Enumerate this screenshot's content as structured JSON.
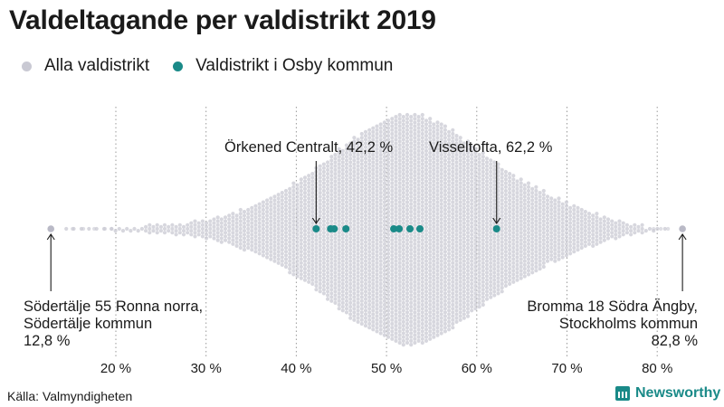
{
  "title": "Valdeltagande per valdistrikt 2019",
  "legend": [
    {
      "label": "Alla valdistrikt",
      "color": "#c9c9d3"
    },
    {
      "label": "Valdistrikt i Osby kommun",
      "color": "#1a8a88"
    }
  ],
  "annotations": {
    "left": [
      "Södertälje 55 Ronna norra,",
      "Södertälje kommun",
      "12,8 %"
    ],
    "right": [
      "Bromma 18 Södra Ängby,",
      "Stockholms kommun",
      "82,8 %"
    ],
    "orkened": "Örkened Centralt, 42,2 %",
    "visseltofta": "Visseltofta, 62,2 %"
  },
  "source": "Källa: Valmyndigheten",
  "brand": "Newsworthy",
  "chart_data": {
    "type": "scatter",
    "subtype": "beeswarm",
    "title": "Valdeltagande per valdistrikt 2019",
    "xlabel": "",
    "ylabel": "",
    "xlim": [
      10,
      85
    ],
    "ticks": [
      20,
      30,
      40,
      50,
      60,
      70,
      80
    ],
    "tick_labels": [
      "20 %",
      "30 %",
      "40 %",
      "50 %",
      "60 %",
      "70 %",
      "80 %"
    ],
    "series": [
      {
        "name": "Alla valdistrikt",
        "color": "#c9c9d3",
        "extremes": [
          12.8,
          82.8
        ],
        "density": [
          [
            16,
            1
          ],
          [
            18,
            2
          ],
          [
            20,
            4
          ],
          [
            22,
            6
          ],
          [
            24,
            8
          ],
          [
            26,
            10
          ],
          [
            28,
            14
          ],
          [
            30,
            18
          ],
          [
            32,
            26
          ],
          [
            34,
            38
          ],
          [
            36,
            52
          ],
          [
            38,
            68
          ],
          [
            40,
            90
          ],
          [
            42,
            112
          ],
          [
            44,
            140
          ],
          [
            46,
            168
          ],
          [
            48,
            190
          ],
          [
            50,
            208
          ],
          [
            52,
            220
          ],
          [
            54,
            214
          ],
          [
            56,
            200
          ],
          [
            58,
            178
          ],
          [
            60,
            152
          ],
          [
            62,
            128
          ],
          [
            64,
            104
          ],
          [
            66,
            84
          ],
          [
            68,
            66
          ],
          [
            70,
            50
          ],
          [
            72,
            38
          ],
          [
            74,
            26
          ],
          [
            76,
            16
          ],
          [
            78,
            8
          ],
          [
            80,
            4
          ],
          [
            82,
            1
          ]
        ]
      },
      {
        "name": "Valdistrikt i Osby kommun",
        "color": "#1a8a88",
        "values": [
          42.2,
          43.8,
          44.2,
          45.5,
          50.8,
          51.4,
          52.6,
          53.7,
          62.2
        ]
      }
    ]
  }
}
